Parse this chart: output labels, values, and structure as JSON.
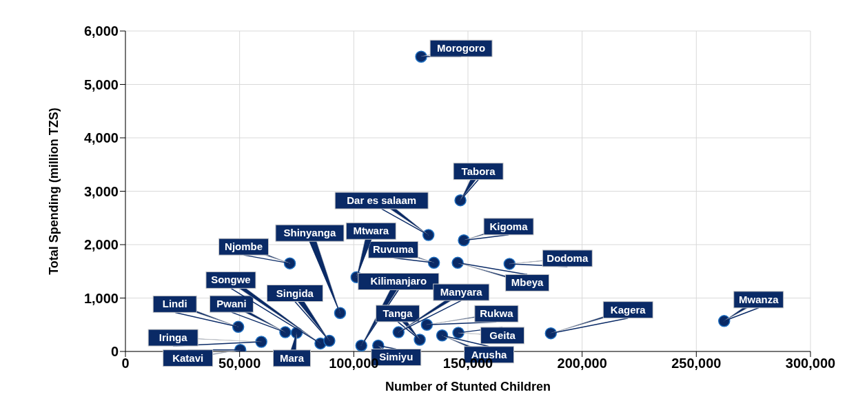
{
  "chart_data": {
    "type": "scatter",
    "xlabel": "Number of Stunted Children",
    "ylabel": "Total Spending (million TZS)",
    "x": [
      129500,
      146700,
      132700,
      148200,
      135100,
      145500,
      168200,
      101200,
      94000,
      72000,
      49400,
      70000,
      85400,
      89300,
      75000,
      59500,
      50300,
      103300,
      110700,
      128900,
      119600,
      132000,
      145800,
      138700,
      186300,
      262200
    ],
    "values": [
      5520,
      2830,
      2180,
      2080,
      1660,
      1660,
      1640,
      1390,
      720,
      1650,
      460,
      360,
      150,
      200,
      350,
      180,
      30,
      110,
      110,
      220,
      360,
      500,
      350,
      300,
      340,
      570
    ],
    "color": "#0a2a66",
    "marker": "circle",
    "xlim": [
      0,
      300000
    ],
    "xticks": [
      {
        "value": 0,
        "label": "0"
      },
      {
        "value": 50000,
        "label": "50,000"
      },
      {
        "value": 100000,
        "label": "100,000"
      },
      {
        "value": 150000,
        "label": "150,000"
      },
      {
        "value": 200000,
        "label": "200,000"
      },
      {
        "value": 250000,
        "label": "250,000"
      },
      {
        "value": 300000,
        "label": "300,000"
      }
    ],
    "ylim": [
      0,
      6000
    ],
    "yticks": [
      {
        "value": 0,
        "label": "0"
      },
      {
        "value": 1000,
        "label": "1,000"
      },
      {
        "value": 2000,
        "label": "2,000"
      },
      {
        "value": 3000,
        "label": "3,000"
      },
      {
        "value": 4000,
        "label": "4,000"
      },
      {
        "value": 5000,
        "label": "5,000"
      },
      {
        "value": 6000,
        "label": "6,000"
      }
    ],
    "grid": true,
    "legend": false,
    "annotations": [
      {
        "text": "Morogoro",
        "x": 129500,
        "y": 5520
      },
      {
        "text": "Tabora",
        "x": 146700,
        "y": 2830
      },
      {
        "text": "Dar es salaam",
        "x": 132700,
        "y": 2180
      },
      {
        "text": "Kigoma",
        "x": 148200,
        "y": 2080
      },
      {
        "text": "Ruvuma",
        "x": 135100,
        "y": 1660
      },
      {
        "text": "Mbeya",
        "x": 145500,
        "y": 1660
      },
      {
        "text": "Dodoma",
        "x": 168200,
        "y": 1640
      },
      {
        "text": "Mtwara",
        "x": 101200,
        "y": 1390
      },
      {
        "text": "Shinyanga",
        "x": 94000,
        "y": 720
      },
      {
        "text": "Njombe",
        "x": 72000,
        "y": 1650
      },
      {
        "text": "Lindi",
        "x": 49400,
        "y": 460
      },
      {
        "text": "Pwani",
        "x": 70000,
        "y": 360
      },
      {
        "text": "Songwe",
        "x": 85400,
        "y": 150
      },
      {
        "text": "Singida",
        "x": 89300,
        "y": 200
      },
      {
        "text": "Mara",
        "x": 75000,
        "y": 350
      },
      {
        "text": "Iringa",
        "x": 59500,
        "y": 180
      },
      {
        "text": "Katavi",
        "x": 50300,
        "y": 30
      },
      {
        "text": "Kilimanjaro",
        "x": 103300,
        "y": 110
      },
      {
        "text": "Simiyu",
        "x": 110700,
        "y": 110
      },
      {
        "text": "Tanga",
        "x": 128900,
        "y": 220
      },
      {
        "text": "Manyara",
        "x": 119600,
        "y": 360
      },
      {
        "text": "Rukwa",
        "x": 132000,
        "y": 500
      },
      {
        "text": "Geita",
        "x": 145800,
        "y": 350
      },
      {
        "text": "Arusha",
        "x": 138700,
        "y": 300
      },
      {
        "text": "Kagera",
        "x": 186300,
        "y": 340
      },
      {
        "text": "Mwanza",
        "x": 262200,
        "y": 570
      }
    ]
  }
}
